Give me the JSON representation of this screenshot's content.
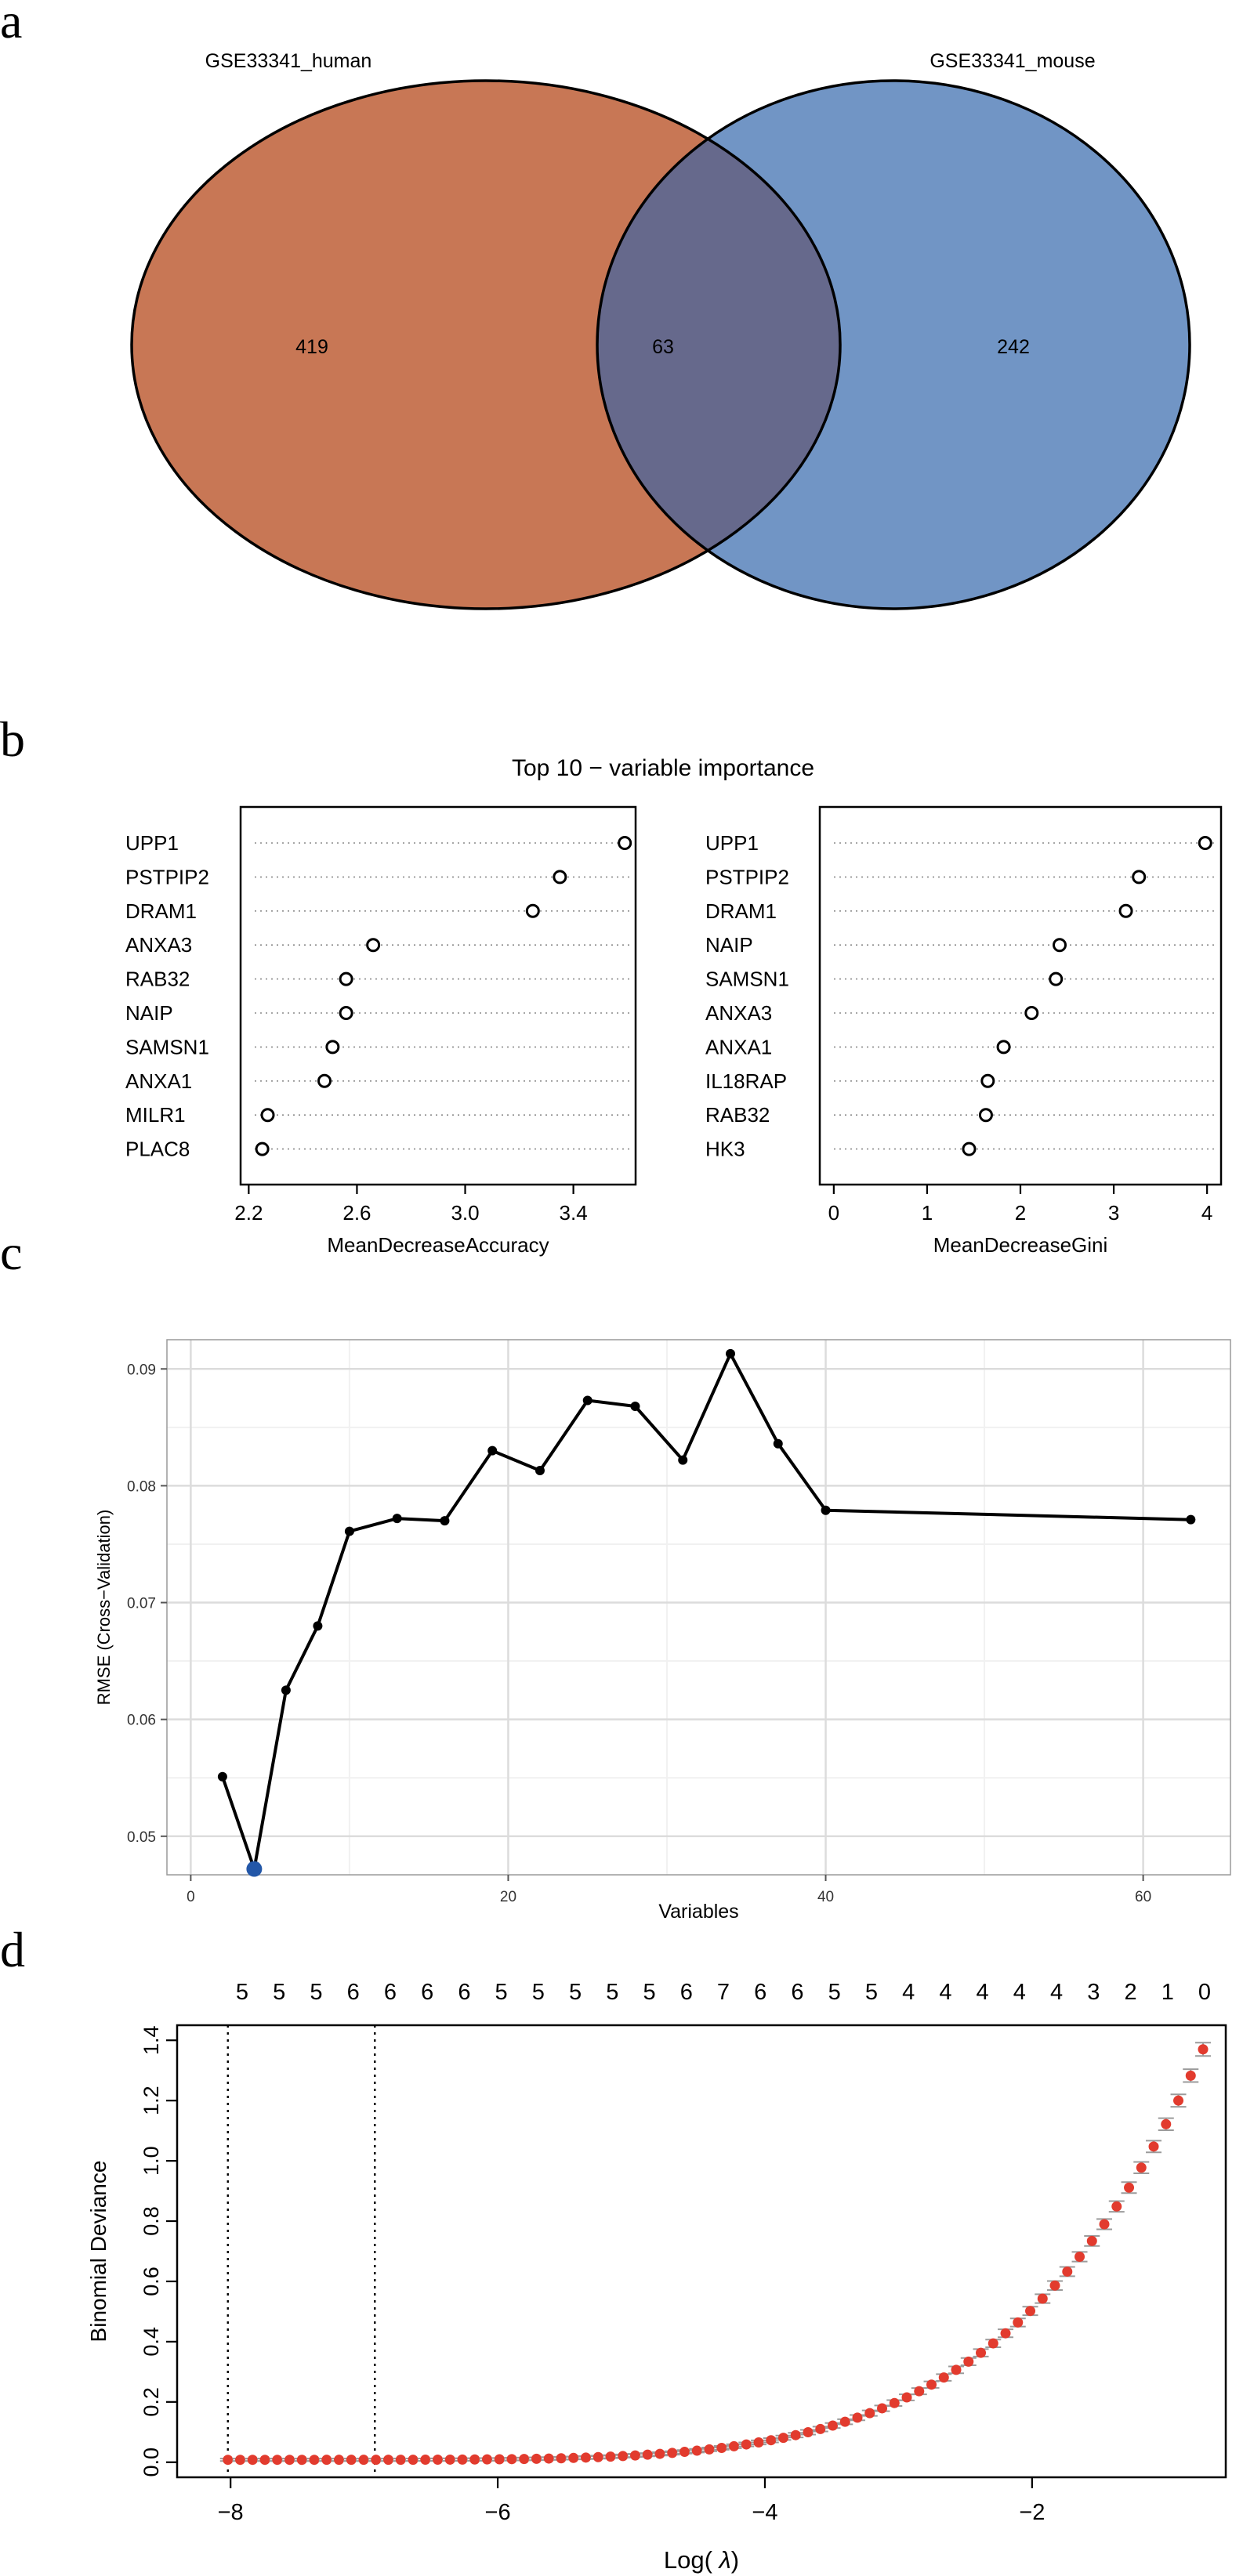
{
  "panels": {
    "a": {
      "letter": "a"
    },
    "b": {
      "letter": "b"
    },
    "c": {
      "letter": "c"
    },
    "d": {
      "letter": "d"
    }
  },
  "chart_data": [
    {
      "type": "venn",
      "sets": [
        {
          "name": "GSE33341_human",
          "only": "419",
          "color": "#c87755"
        },
        {
          "name": "GSE33341_mouse",
          "only": "242",
          "color": "#7195c5"
        }
      ],
      "intersection": "63",
      "intersection_color": "#66698c"
    },
    {
      "type": "scatter",
      "title": "Top 10 − variable importance",
      "panels": [
        {
          "xlabel": "MeanDecreaseAccuracy",
          "xlim": [
            2.17,
            3.63
          ],
          "xticks": [
            2.2,
            2.6,
            3.0,
            3.4
          ],
          "xtick_labels": [
            "2.2",
            "2.6",
            "3.0",
            "3.4"
          ],
          "categories": [
            "UPP1",
            "PSTPIP2",
            "DRAM1",
            "ANXA3",
            "RAB32",
            "NAIP",
            "SAMSN1",
            "ANXA1",
            "MILR1",
            "PLAC8"
          ],
          "values": [
            3.59,
            3.35,
            3.25,
            2.66,
            2.56,
            2.56,
            2.51,
            2.48,
            2.27,
            2.25
          ]
        },
        {
          "xlabel": "MeanDecreaseGini",
          "xlim": [
            -0.15,
            4.15
          ],
          "xticks": [
            0,
            1,
            2,
            3,
            4
          ],
          "xtick_labels": [
            "0",
            "1",
            "2",
            "3",
            "4"
          ],
          "categories": [
            "UPP1",
            "PSTPIP2",
            "DRAM1",
            "NAIP",
            "SAMSN1",
            "ANXA3",
            "ANXA1",
            "IL18RAP",
            "RAB32",
            "HK3"
          ],
          "values": [
            3.98,
            3.27,
            3.13,
            2.42,
            2.38,
            2.12,
            1.82,
            1.65,
            1.63,
            1.45
          ]
        }
      ]
    },
    {
      "type": "line",
      "xlabel": "Variables",
      "ylabel": "RMSE (Cross−Validation)",
      "xlim": [
        -1.5,
        65.5
      ],
      "ylim": [
        0.0467,
        0.0925
      ],
      "xticks": [
        0,
        20,
        40,
        60
      ],
      "xtick_labels": [
        "0",
        "20",
        "40",
        "60"
      ],
      "yticks": [
        0.05,
        0.06,
        0.07,
        0.08,
        0.09
      ],
      "ytick_labels": [
        "0.05",
        "0.06",
        "0.07",
        "0.08",
        "0.09"
      ],
      "grid": true,
      "x": [
        2,
        4,
        6,
        8,
        10,
        13,
        16,
        19,
        22,
        25,
        28,
        31,
        34,
        37,
        40,
        63
      ],
      "y": [
        0.0551,
        0.0472,
        0.0625,
        0.068,
        0.0761,
        0.0772,
        0.077,
        0.083,
        0.0813,
        0.0873,
        0.0868,
        0.0822,
        0.0913,
        0.0836,
        0.0779,
        0.0771
      ],
      "highlight": {
        "x": 4,
        "y": 0.0472,
        "color": "#2357a8"
      }
    },
    {
      "type": "scatter",
      "xlabel": "Log(",
      "xlabel_symbol": "λ",
      "xlabel_close": ")",
      "ylabel": "Binomial Deviance",
      "xlim": [
        -8.4,
        -0.55
      ],
      "ylim": [
        -0.05,
        1.45
      ],
      "xticks": [
        -8,
        -6,
        -4,
        -2
      ],
      "xtick_labels": [
        "−8",
        "−6",
        "−4",
        "−2"
      ],
      "yticks": [
        0.0,
        0.2,
        0.4,
        0.6,
        0.8,
        1.0,
        1.2,
        1.4
      ],
      "ytick_labels": [
        "0.0",
        "0.2",
        "0.4",
        "0.6",
        "0.8",
        "1.0",
        "1.2",
        "1.4"
      ],
      "top_axis_labels": [
        "5",
        "5",
        "5",
        "6",
        "6",
        "6",
        "6",
        "5",
        "5",
        "5",
        "5",
        "5",
        "6",
        "7",
        "6",
        "6",
        "5",
        "5",
        "4",
        "4",
        "4",
        "4",
        "4",
        "3",
        "2",
        "1",
        "0"
      ],
      "vlines": [
        -8.02,
        -6.92
      ],
      "series_x_start": -8.02,
      "series_x_end": -0.72,
      "series_n": 80,
      "point_color": "#e23b2e",
      "error_color": "#9b9b9b"
    }
  ]
}
